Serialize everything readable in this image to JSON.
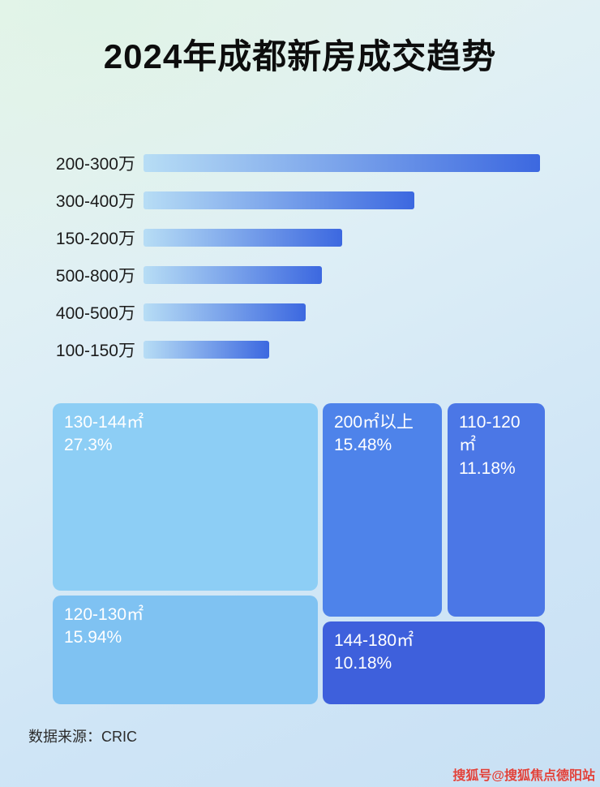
{
  "title": "2024年成都新房成交趋势",
  "footer": {
    "source": "数据来源：CRIC",
    "watermark": "搜狐号@搜狐焦点德阳站"
  },
  "colors": {
    "bar_gradient_start": "#b7ddf5",
    "bar_gradient_end": "#3c68e0",
    "treemap_blocks": [
      "#8dcef5",
      "#4e83ea",
      "#4b77e6",
      "#7fc2f2",
      "#3e60dc"
    ],
    "watermark_red": "#e0413a",
    "title_black": "#0d0d0d"
  },
  "chart_data": [
    {
      "type": "bar",
      "orientation": "horizontal",
      "title": "2024年成都新房成交趋势",
      "categories": [
        "200-300万",
        "300-400万",
        "150-200万",
        "500-800万",
        "400-500万",
        "100-150万"
      ],
      "values_relative": [
        98,
        67,
        49,
        44,
        40,
        31
      ],
      "note": "no numeric axis or data labels shown; values are relative bar lengths (longest bar = 98% of track)",
      "xlabel": "",
      "ylabel": "",
      "grid": false,
      "legend": false
    },
    {
      "type": "treemap",
      "items": [
        {
          "label": "130-144㎡",
          "value": 27.3,
          "pct_label": "27.3%"
        },
        {
          "label": "200㎡以上",
          "value": 15.48,
          "pct_label": "15.48%"
        },
        {
          "label": "110-120㎡",
          "value": 11.18,
          "pct_label": "11.18%"
        },
        {
          "label": "120-130㎡",
          "value": 15.94,
          "pct_label": "15.94%"
        },
        {
          "label": "144-180㎡",
          "value": 10.18,
          "pct_label": "10.18%"
        }
      ]
    }
  ]
}
